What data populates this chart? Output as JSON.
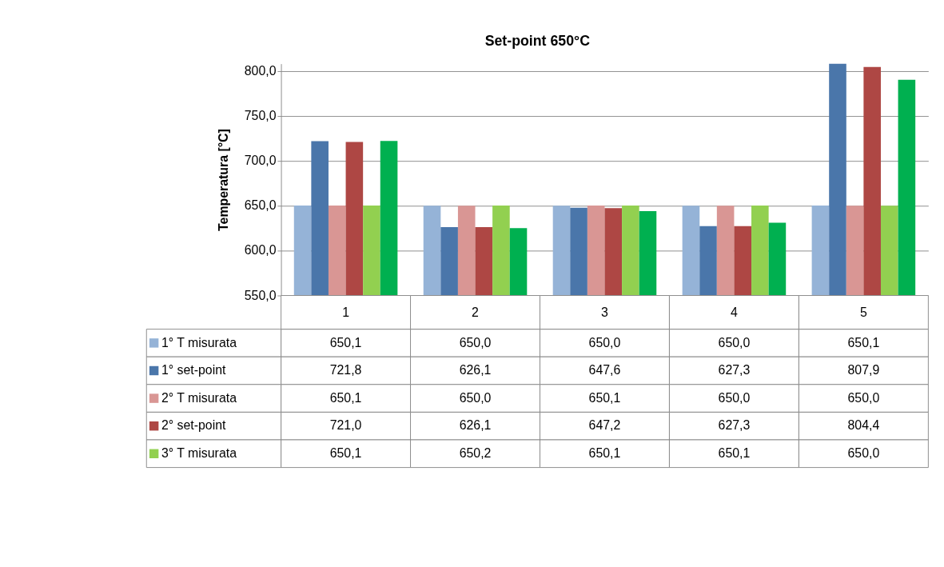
{
  "chart_data": {
    "type": "bar",
    "title": "Set-point 650°C",
    "ylabel": "Temperatura [°C]",
    "categories": [
      "1",
      "2",
      "3",
      "4",
      "5"
    ],
    "series": [
      {
        "name": "1° T misurata",
        "color": "#95b3d7",
        "values": [
          650.1,
          650.0,
          650.0,
          650.0,
          650.1
        ],
        "value_labels": [
          "650,1",
          "650,0",
          "650,0",
          "650,0",
          "650,1"
        ]
      },
      {
        "name": "1° set-point",
        "color": "#4a76aa",
        "values": [
          721.8,
          626.1,
          647.6,
          627.3,
          807.9
        ],
        "value_labels": [
          "721,8",
          "626,1",
          "647,6",
          "627,3",
          "807,9"
        ]
      },
      {
        "name": "2° T misurata",
        "color": "#d99694",
        "values": [
          650.1,
          650.0,
          650.1,
          650.0,
          650.0
        ],
        "value_labels": [
          "650,1",
          "650,0",
          "650,1",
          "650,0",
          "650,0"
        ]
      },
      {
        "name": "2° set-point",
        "color": "#ae4744",
        "values": [
          721.0,
          626.1,
          647.2,
          627.3,
          804.4
        ],
        "value_labels": [
          "721,0",
          "626,1",
          "647,2",
          "627,3",
          "804,4"
        ]
      },
      {
        "name": "3° T misurata",
        "color": "#92d050",
        "values": [
          650.1,
          650.2,
          650.1,
          650.1,
          650.0
        ],
        "value_labels": [
          "650,1",
          "650,2",
          "650,1",
          "650,1",
          "650,0"
        ]
      },
      {
        "color": "#00b050",
        "values": [
          722,
          625,
          644,
          631,
          790
        ]
      }
    ],
    "ylim": [
      550,
      808
    ],
    "yticks": [
      {
        "value": 550,
        "label": "550,0"
      },
      {
        "value": 600,
        "label": "600,0"
      },
      {
        "value": 650,
        "label": "650,0"
      },
      {
        "value": 700,
        "label": "700,0"
      },
      {
        "value": 750,
        "label": "750,0"
      },
      {
        "value": 800,
        "label": "800,0"
      }
    ],
    "grid": "y",
    "legend": "bottom left"
  }
}
